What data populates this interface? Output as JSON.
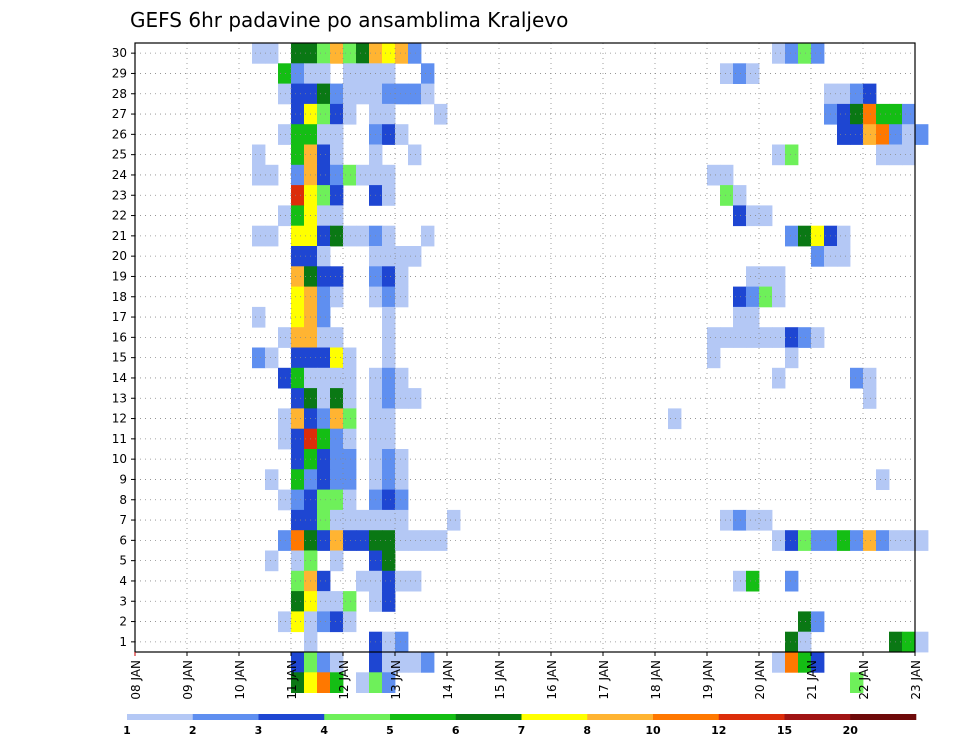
{
  "chart_data": {
    "type": "heatmap",
    "title": "GEFS 6hr padavine po ansamblima Kraljevo",
    "x_tick_labels": [
      "08 JAN",
      "09 JAN",
      "10 JAN",
      "11 JAN",
      "12 JAN",
      "13 JAN",
      "14 JAN",
      "15 JAN",
      "16 JAN",
      "17 JAN",
      "18 JAN",
      "19 JAN",
      "20 JAN",
      "21 JAN",
      "22 JAN",
      "23 JAN"
    ],
    "y_tick_labels": [
      "1",
      "2",
      "3",
      "4",
      "5",
      "6",
      "7",
      "8",
      "9",
      "10",
      "11",
      "12",
      "13",
      "14",
      "15",
      "16",
      "17",
      "18",
      "19",
      "20",
      "21",
      "22",
      "23",
      "24",
      "25",
      "26",
      "27",
      "28",
      "29",
      "30"
    ],
    "ylim": [
      1,
      30
    ],
    "grid": true,
    "colorbar": {
      "labels": [
        "1",
        "2",
        "3",
        "4",
        "5",
        "6",
        "7",
        "8",
        "10",
        "12",
        "15",
        "20"
      ],
      "colors": [
        "#b4c8f5",
        "#5f8ff0",
        "#1e46d2",
        "#6ef05a",
        "#14be14",
        "#0a7814",
        "#ffff00",
        "#ffb432",
        "#ff7800",
        "#dc2d0a",
        "#a01414",
        "#6e0a0a"
      ]
    },
    "cells": [
      [
        30,
        9,
        1
      ],
      [
        30,
        10,
        1
      ],
      [
        30,
        12,
        6
      ],
      [
        30,
        13,
        6
      ],
      [
        30,
        14,
        4
      ],
      [
        30,
        15,
        8
      ],
      [
        30,
        16,
        4
      ],
      [
        30,
        17,
        6
      ],
      [
        30,
        18,
        8
      ],
      [
        30,
        19,
        7
      ],
      [
        30,
        20,
        8
      ],
      [
        30,
        21,
        2
      ],
      [
        30,
        49,
        1
      ],
      [
        30,
        50,
        2
      ],
      [
        30,
        51,
        4
      ],
      [
        30,
        52,
        2
      ],
      [
        29,
        11,
        5
      ],
      [
        29,
        12,
        2
      ],
      [
        29,
        13,
        1
      ],
      [
        29,
        14,
        1
      ],
      [
        29,
        16,
        1
      ],
      [
        29,
        17,
        1
      ],
      [
        29,
        18,
        1
      ],
      [
        29,
        19,
        1
      ],
      [
        29,
        22,
        2
      ],
      [
        29,
        45,
        1
      ],
      [
        29,
        46,
        2
      ],
      [
        29,
        47,
        1
      ],
      [
        28,
        11,
        1
      ],
      [
        28,
        12,
        3
      ],
      [
        28,
        13,
        3
      ],
      [
        28,
        14,
        6
      ],
      [
        28,
        15,
        2
      ],
      [
        28,
        16,
        1
      ],
      [
        28,
        17,
        1
      ],
      [
        28,
        18,
        1
      ],
      [
        28,
        19,
        2
      ],
      [
        28,
        20,
        2
      ],
      [
        28,
        21,
        2
      ],
      [
        28,
        22,
        1
      ],
      [
        28,
        53,
        1
      ],
      [
        28,
        54,
        1
      ],
      [
        28,
        55,
        2
      ],
      [
        28,
        56,
        3
      ],
      [
        27,
        12,
        3
      ],
      [
        27,
        13,
        7
      ],
      [
        27,
        14,
        4
      ],
      [
        27,
        15,
        3
      ],
      [
        27,
        16,
        1
      ],
      [
        27,
        18,
        1
      ],
      [
        27,
        19,
        1
      ],
      [
        27,
        23,
        1
      ],
      [
        27,
        53,
        2
      ],
      [
        27,
        54,
        3
      ],
      [
        27,
        55,
        6
      ],
      [
        27,
        56,
        9
      ],
      [
        27,
        57,
        5
      ],
      [
        27,
        58,
        5
      ],
      [
        27,
        59,
        2
      ],
      [
        26,
        11,
        1
      ],
      [
        26,
        12,
        5
      ],
      [
        26,
        13,
        5
      ],
      [
        26,
        14,
        1
      ],
      [
        26,
        15,
        1
      ],
      [
        26,
        18,
        2
      ],
      [
        26,
        19,
        3
      ],
      [
        26,
        20,
        1
      ],
      [
        26,
        54,
        3
      ],
      [
        26,
        55,
        3
      ],
      [
        26,
        56,
        8
      ],
      [
        26,
        57,
        9
      ],
      [
        26,
        58,
        2
      ],
      [
        26,
        59,
        1
      ],
      [
        26,
        60,
        2
      ],
      [
        25,
        9,
        1
      ],
      [
        25,
        12,
        5
      ],
      [
        25,
        13,
        8
      ],
      [
        25,
        14,
        3
      ],
      [
        25,
        15,
        1
      ],
      [
        25,
        18,
        1
      ],
      [
        25,
        21,
        1
      ],
      [
        25,
        49,
        1
      ],
      [
        25,
        50,
        4
      ],
      [
        25,
        57,
        1
      ],
      [
        25,
        58,
        1
      ],
      [
        25,
        59,
        1
      ],
      [
        24,
        9,
        1
      ],
      [
        24,
        10,
        1
      ],
      [
        24,
        12,
        2
      ],
      [
        24,
        13,
        8
      ],
      [
        24,
        14,
        3
      ],
      [
        24,
        15,
        2
      ],
      [
        24,
        16,
        4
      ],
      [
        24,
        17,
        1
      ],
      [
        24,
        18,
        1
      ],
      [
        24,
        19,
        1
      ],
      [
        24,
        44,
        1
      ],
      [
        24,
        45,
        1
      ],
      [
        23,
        12,
        10
      ],
      [
        23,
        13,
        7
      ],
      [
        23,
        14,
        4
      ],
      [
        23,
        15,
        3
      ],
      [
        23,
        18,
        3
      ],
      [
        23,
        19,
        1
      ],
      [
        23,
        45,
        4
      ],
      [
        23,
        46,
        1
      ],
      [
        22,
        11,
        1
      ],
      [
        22,
        12,
        5
      ],
      [
        22,
        13,
        7
      ],
      [
        22,
        14,
        1
      ],
      [
        22,
        15,
        1
      ],
      [
        22,
        46,
        3
      ],
      [
        22,
        47,
        1
      ],
      [
        22,
        48,
        1
      ],
      [
        21,
        9,
        1
      ],
      [
        21,
        10,
        1
      ],
      [
        21,
        12,
        7
      ],
      [
        21,
        13,
        7
      ],
      [
        21,
        14,
        3
      ],
      [
        21,
        15,
        6
      ],
      [
        21,
        16,
        1
      ],
      [
        21,
        17,
        1
      ],
      [
        21,
        18,
        2
      ],
      [
        21,
        19,
        1
      ],
      [
        21,
        22,
        1
      ],
      [
        21,
        50,
        2
      ],
      [
        21,
        51,
        6
      ],
      [
        21,
        52,
        7
      ],
      [
        21,
        53,
        3
      ],
      [
        21,
        54,
        1
      ],
      [
        20,
        12,
        3
      ],
      [
        20,
        13,
        3
      ],
      [
        20,
        14,
        1
      ],
      [
        20,
        18,
        1
      ],
      [
        20,
        19,
        1
      ],
      [
        20,
        20,
        1
      ],
      [
        20,
        21,
        1
      ],
      [
        20,
        52,
        2
      ],
      [
        20,
        53,
        1
      ],
      [
        20,
        54,
        1
      ],
      [
        19,
        12,
        8
      ],
      [
        19,
        13,
        6
      ],
      [
        19,
        14,
        3
      ],
      [
        19,
        15,
        3
      ],
      [
        19,
        18,
        2
      ],
      [
        19,
        19,
        3
      ],
      [
        19,
        20,
        1
      ],
      [
        19,
        47,
        1
      ],
      [
        19,
        48,
        1
      ],
      [
        19,
        49,
        1
      ],
      [
        18,
        12,
        7
      ],
      [
        18,
        13,
        8
      ],
      [
        18,
        14,
        2
      ],
      [
        18,
        15,
        1
      ],
      [
        18,
        18,
        1
      ],
      [
        18,
        19,
        2
      ],
      [
        18,
        20,
        1
      ],
      [
        18,
        46,
        3
      ],
      [
        18,
        47,
        2
      ],
      [
        18,
        48,
        4
      ],
      [
        18,
        49,
        1
      ],
      [
        17,
        9,
        1
      ],
      [
        17,
        12,
        7
      ],
      [
        17,
        13,
        8
      ],
      [
        17,
        14,
        2
      ],
      [
        17,
        19,
        1
      ],
      [
        17,
        46,
        1
      ],
      [
        17,
        47,
        1
      ],
      [
        16,
        11,
        1
      ],
      [
        16,
        12,
        8
      ],
      [
        16,
        13,
        8
      ],
      [
        16,
        14,
        1
      ],
      [
        16,
        15,
        1
      ],
      [
        16,
        19,
        1
      ],
      [
        16,
        44,
        1
      ],
      [
        16,
        45,
        1
      ],
      [
        16,
        46,
        1
      ],
      [
        16,
        47,
        1
      ],
      [
        16,
        48,
        1
      ],
      [
        16,
        49,
        1
      ],
      [
        16,
        50,
        3
      ],
      [
        16,
        51,
        2
      ],
      [
        16,
        52,
        1
      ],
      [
        15,
        9,
        2
      ],
      [
        15,
        10,
        1
      ],
      [
        15,
        12,
        3
      ],
      [
        15,
        13,
        3
      ],
      [
        15,
        14,
        3
      ],
      [
        15,
        15,
        7
      ],
      [
        15,
        16,
        1
      ],
      [
        15,
        19,
        1
      ],
      [
        15,
        44,
        1
      ],
      [
        15,
        50,
        1
      ],
      [
        14,
        11,
        3
      ],
      [
        14,
        12,
        5
      ],
      [
        14,
        13,
        1
      ],
      [
        14,
        14,
        1
      ],
      [
        14,
        15,
        1
      ],
      [
        14,
        16,
        1
      ],
      [
        14,
        18,
        1
      ],
      [
        14,
        19,
        2
      ],
      [
        14,
        20,
        1
      ],
      [
        14,
        49,
        1
      ],
      [
        14,
        55,
        2
      ],
      [
        14,
        56,
        1
      ],
      [
        13,
        12,
        3
      ],
      [
        13,
        13,
        6
      ],
      [
        13,
        14,
        1
      ],
      [
        13,
        15,
        6
      ],
      [
        13,
        16,
        1
      ],
      [
        13,
        18,
        1
      ],
      [
        13,
        19,
        2
      ],
      [
        13,
        20,
        1
      ],
      [
        13,
        21,
        1
      ],
      [
        13,
        56,
        1
      ],
      [
        12,
        11,
        1
      ],
      [
        12,
        12,
        8
      ],
      [
        12,
        13,
        3
      ],
      [
        12,
        14,
        2
      ],
      [
        12,
        15,
        8
      ],
      [
        12,
        16,
        4
      ],
      [
        12,
        18,
        1
      ],
      [
        12,
        19,
        1
      ],
      [
        12,
        41,
        1
      ],
      [
        11,
        11,
        1
      ],
      [
        11,
        12,
        3
      ],
      [
        11,
        13,
        10
      ],
      [
        11,
        14,
        5
      ],
      [
        11,
        15,
        2
      ],
      [
        11,
        16,
        1
      ],
      [
        11,
        18,
        1
      ],
      [
        11,
        19,
        1
      ],
      [
        10,
        12,
        3
      ],
      [
        10,
        13,
        5
      ],
      [
        10,
        14,
        3
      ],
      [
        10,
        15,
        2
      ],
      [
        10,
        16,
        2
      ],
      [
        10,
        18,
        1
      ],
      [
        10,
        19,
        2
      ],
      [
        10,
        20,
        1
      ],
      [
        9,
        10,
        1
      ],
      [
        9,
        12,
        5
      ],
      [
        9,
        13,
        2
      ],
      [
        9,
        14,
        3
      ],
      [
        9,
        15,
        2
      ],
      [
        9,
        16,
        2
      ],
      [
        9,
        18,
        1
      ],
      [
        9,
        19,
        2
      ],
      [
        9,
        20,
        1
      ],
      [
        9,
        57,
        1
      ],
      [
        8,
        11,
        1
      ],
      [
        8,
        12,
        2
      ],
      [
        8,
        13,
        3
      ],
      [
        8,
        14,
        4
      ],
      [
        8,
        15,
        4
      ],
      [
        8,
        16,
        1
      ],
      [
        8,
        18,
        2
      ],
      [
        8,
        19,
        3
      ],
      [
        8,
        20,
        2
      ],
      [
        7,
        12,
        3
      ],
      [
        7,
        13,
        3
      ],
      [
        7,
        14,
        4
      ],
      [
        7,
        15,
        1
      ],
      [
        7,
        16,
        1
      ],
      [
        7,
        17,
        1
      ],
      [
        7,
        18,
        1
      ],
      [
        7,
        19,
        1
      ],
      [
        7,
        20,
        1
      ],
      [
        7,
        24,
        1
      ],
      [
        7,
        45,
        1
      ],
      [
        7,
        46,
        2
      ],
      [
        7,
        47,
        1
      ],
      [
        7,
        48,
        1
      ],
      [
        6,
        11,
        2
      ],
      [
        6,
        12,
        9
      ],
      [
        6,
        13,
        6
      ],
      [
        6,
        14,
        3
      ],
      [
        6,
        15,
        8
      ],
      [
        6,
        16,
        3
      ],
      [
        6,
        17,
        3
      ],
      [
        6,
        18,
        6
      ],
      [
        6,
        19,
        6
      ],
      [
        6,
        20,
        1
      ],
      [
        6,
        21,
        1
      ],
      [
        6,
        22,
        1
      ],
      [
        6,
        23,
        1
      ],
      [
        6,
        49,
        1
      ],
      [
        6,
        50,
        3
      ],
      [
        6,
        51,
        4
      ],
      [
        6,
        52,
        2
      ],
      [
        6,
        53,
        2
      ],
      [
        6,
        54,
        5
      ],
      [
        6,
        55,
        2
      ],
      [
        6,
        56,
        8
      ],
      [
        6,
        57,
        2
      ],
      [
        6,
        58,
        1
      ],
      [
        6,
        59,
        1
      ],
      [
        6,
        60,
        1
      ],
      [
        5,
        10,
        1
      ],
      [
        5,
        12,
        1
      ],
      [
        5,
        13,
        4
      ],
      [
        5,
        15,
        1
      ],
      [
        5,
        18,
        3
      ],
      [
        5,
        19,
        6
      ],
      [
        4,
        12,
        4
      ],
      [
        4,
        13,
        8
      ],
      [
        4,
        14,
        3
      ],
      [
        4,
        17,
        1
      ],
      [
        4,
        18,
        1
      ],
      [
        4,
        19,
        3
      ],
      [
        4,
        20,
        1
      ],
      [
        4,
        21,
        1
      ],
      [
        4,
        46,
        1
      ],
      [
        4,
        47,
        5
      ],
      [
        4,
        50,
        2
      ],
      [
        3,
        12,
        6
      ],
      [
        3,
        13,
        7
      ],
      [
        3,
        14,
        1
      ],
      [
        3,
        15,
        1
      ],
      [
        3,
        16,
        4
      ],
      [
        3,
        18,
        1
      ],
      [
        3,
        19,
        3
      ],
      [
        2,
        11,
        1
      ],
      [
        2,
        12,
        7
      ],
      [
        2,
        13,
        1
      ],
      [
        2,
        14,
        2
      ],
      [
        2,
        15,
        3
      ],
      [
        2,
        16,
        1
      ],
      [
        2,
        51,
        6
      ],
      [
        2,
        52,
        2
      ],
      [
        1,
        13,
        1
      ],
      [
        1,
        18,
        3
      ],
      [
        1,
        19,
        1
      ],
      [
        1,
        20,
        2
      ],
      [
        1,
        50,
        6
      ],
      [
        1,
        51,
        1
      ],
      [
        1,
        58,
        6
      ],
      [
        1,
        59,
        5
      ],
      [
        1,
        60,
        1
      ],
      [
        0,
        12,
        3
      ],
      [
        0,
        13,
        4
      ],
      [
        0,
        14,
        2
      ],
      [
        0,
        15,
        1
      ],
      [
        0,
        18,
        3
      ],
      [
        0,
        19,
        1
      ],
      [
        0,
        20,
        1
      ],
      [
        0,
        21,
        1
      ],
      [
        0,
        22,
        2
      ],
      [
        0,
        49,
        1
      ],
      [
        0,
        50,
        9
      ],
      [
        0,
        51,
        5
      ],
      [
        0,
        52,
        3
      ],
      [
        -1,
        12,
        6
      ],
      [
        -1,
        13,
        7
      ],
      [
        -1,
        14,
        9
      ],
      [
        -1,
        15,
        5
      ],
      [
        -1,
        17,
        1
      ],
      [
        -1,
        18,
        4
      ],
      [
        -1,
        19,
        2
      ],
      [
        -1,
        55,
        4
      ]
    ]
  }
}
